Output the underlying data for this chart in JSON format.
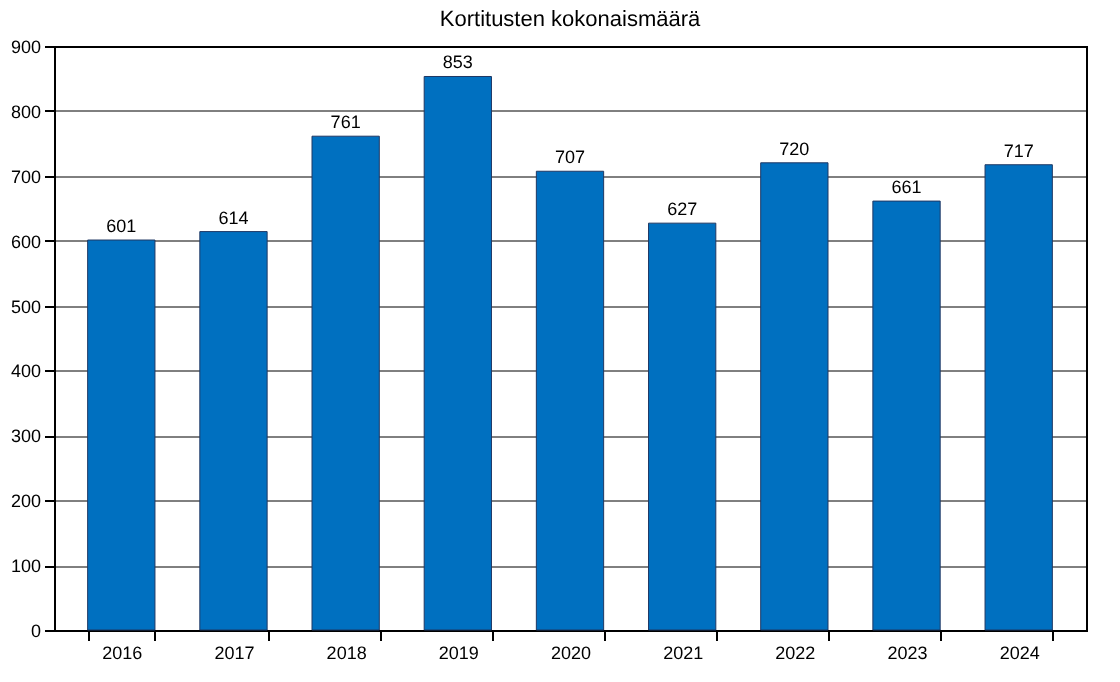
{
  "chart_data": {
    "type": "bar",
    "title": "Kortitusten kokonaismäärä",
    "categories": [
      "2016",
      "2017",
      "2018",
      "2019",
      "2020",
      "2021",
      "2022",
      "2023",
      "2024"
    ],
    "values": [
      601,
      614,
      761,
      853,
      707,
      627,
      720,
      661,
      717
    ],
    "color": "#0070c0",
    "ylim": [
      0,
      900
    ],
    "yticks": [
      0,
      100,
      200,
      300,
      400,
      500,
      600,
      700,
      800,
      900
    ],
    "grid": "y",
    "data_labels": true
  }
}
